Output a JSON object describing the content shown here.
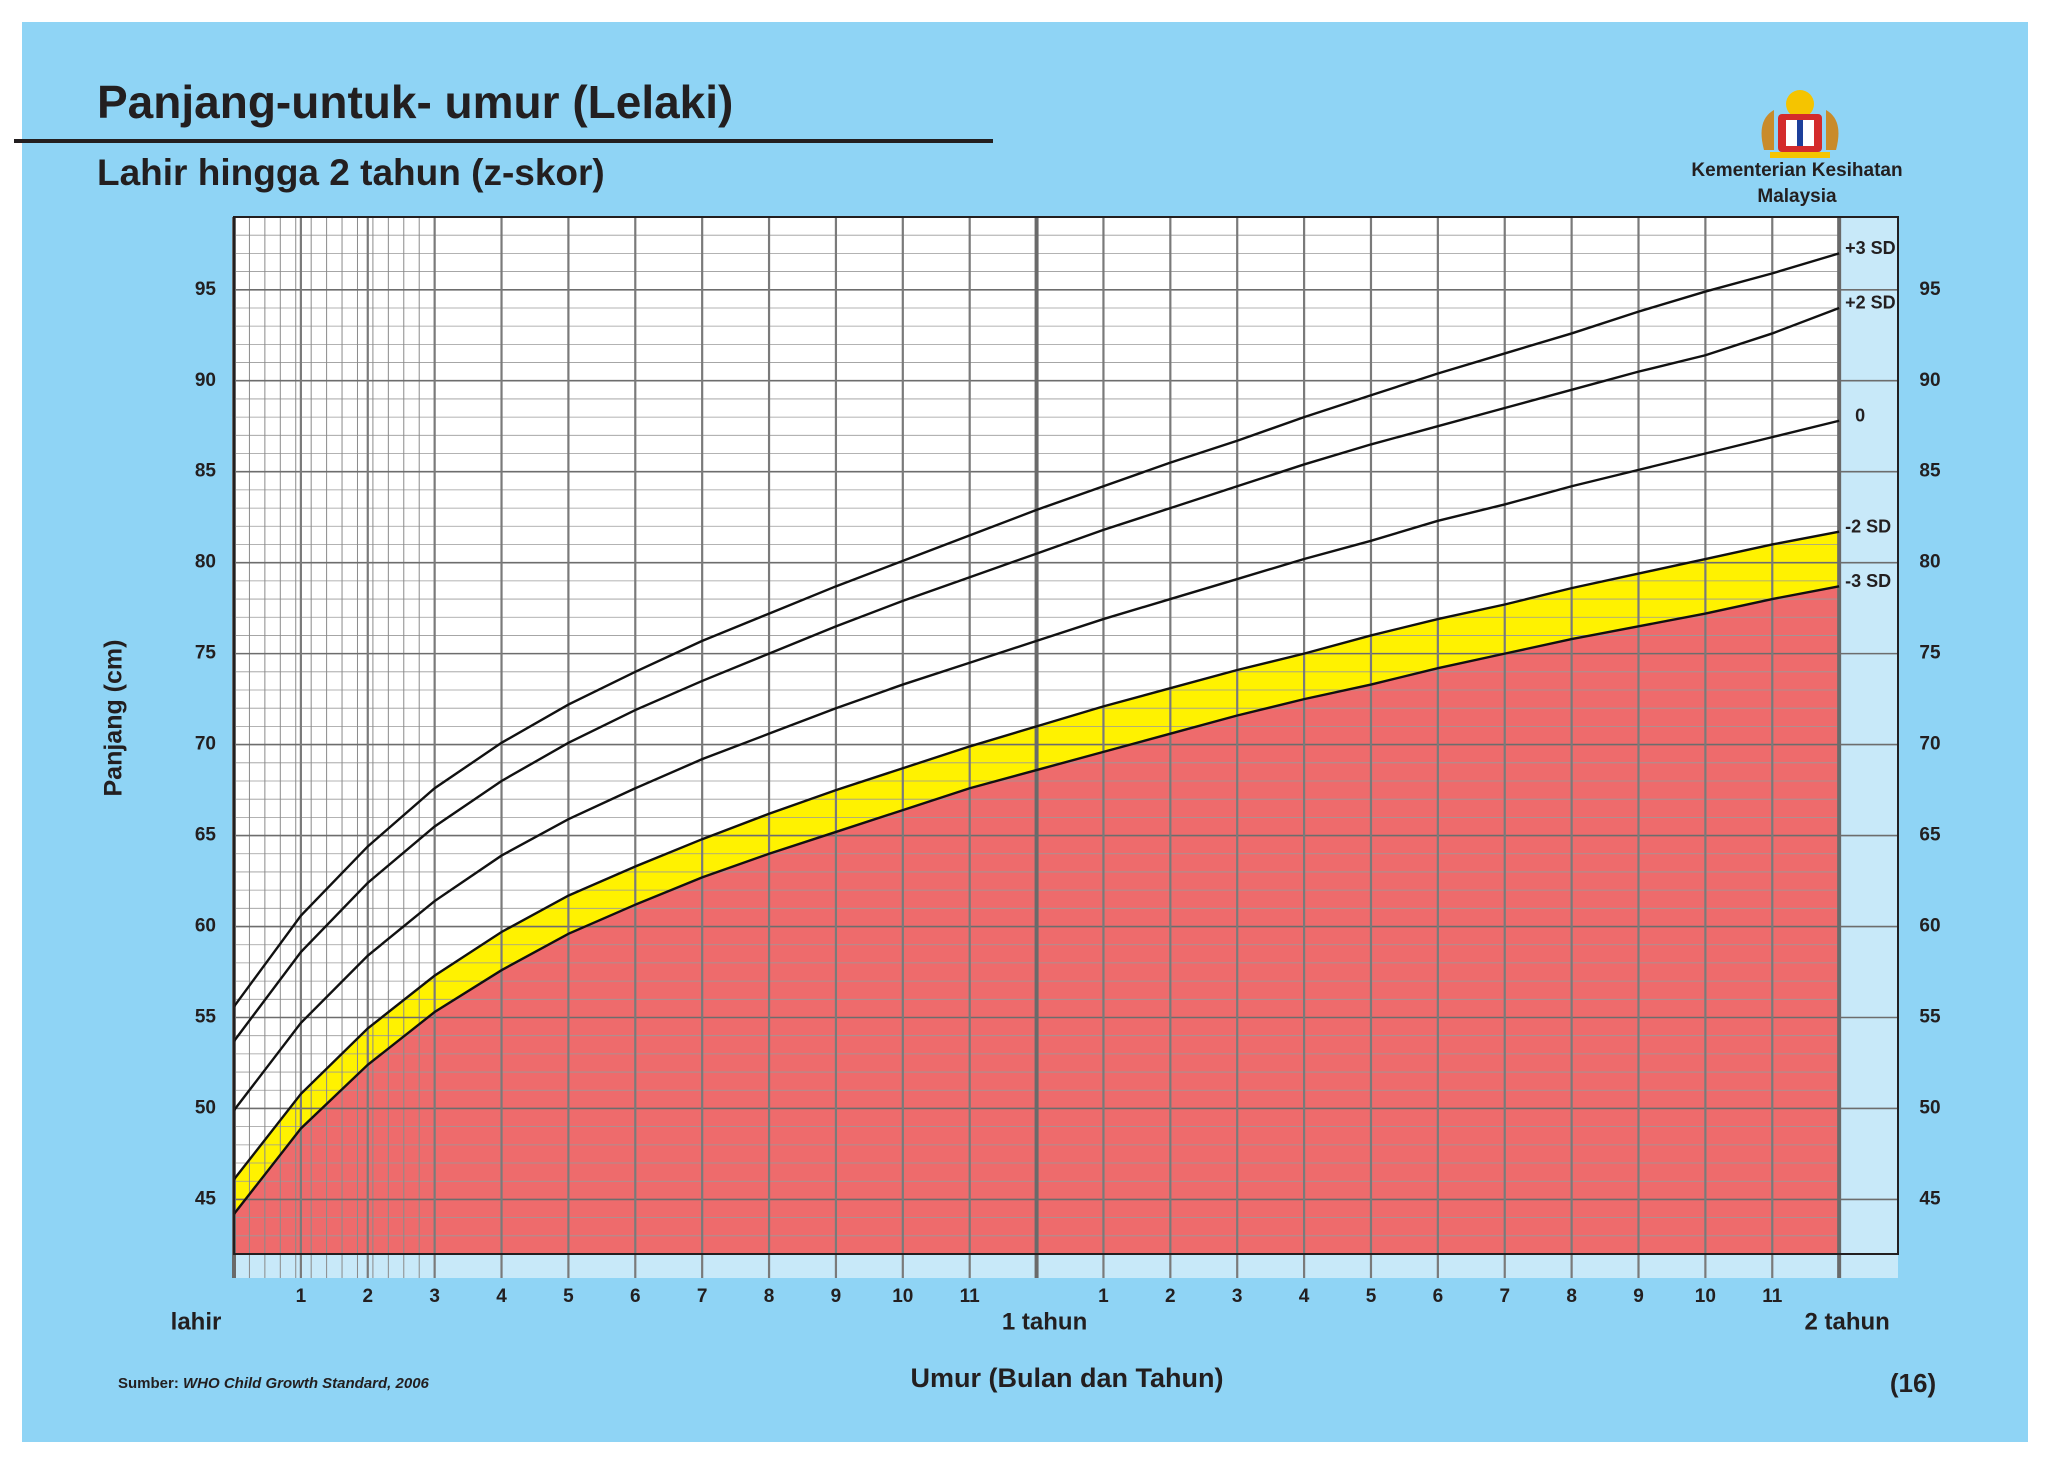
{
  "chart_data": {
    "type": "line",
    "title": "Panjang-untuk- umur (Lelaki)",
    "subtitle": "Lahir hingga 2 tahun (z-skor)",
    "organization": [
      "Kementerian Kesihatan",
      "Malaysia"
    ],
    "xlabel": "Umur (Bulan dan Tahun)",
    "ylabel": "Panjang (cm)",
    "source_prefix": "Sumber:",
    "source": "WHO Child Growth Standard, 2006",
    "page_number": "(16)",
    "x": [
      0,
      1,
      2,
      3,
      4,
      5,
      6,
      7,
      8,
      9,
      10,
      11,
      12,
      13,
      14,
      15,
      16,
      17,
      18,
      19,
      20,
      21,
      22,
      23,
      24
    ],
    "xlim": [
      0,
      24.88
    ],
    "xticks": [
      {
        "value": 0,
        "label": "lahir"
      },
      1,
      2,
      3,
      4,
      5,
      6,
      7,
      8,
      9,
      10,
      11,
      {
        "value": 12,
        "label": "1 tahun"
      },
      {
        "value": 13,
        "label": "1"
      },
      {
        "value": 14,
        "label": "2"
      },
      {
        "value": 15,
        "label": "3"
      },
      {
        "value": 16,
        "label": "4"
      },
      {
        "value": 17,
        "label": "5"
      },
      {
        "value": 18,
        "label": "6"
      },
      {
        "value": 19,
        "label": "7"
      },
      {
        "value": 20,
        "label": "8"
      },
      {
        "value": 21,
        "label": "9"
      },
      {
        "value": 22,
        "label": "10"
      },
      {
        "value": 23,
        "label": "11"
      },
      {
        "value": 24,
        "label": "2 tahun"
      }
    ],
    "ylim": [
      42,
      99
    ],
    "yticks": [
      45,
      50,
      55,
      60,
      65,
      70,
      75,
      80,
      85,
      90,
      95
    ],
    "grid": true,
    "minor_grid": true,
    "series": [
      {
        "name": "+3 SD",
        "color": "#111111",
        "values": [
          55.6,
          60.6,
          64.4,
          67.6,
          70.1,
          72.2,
          74.0,
          75.7,
          77.2,
          78.7,
          80.1,
          81.5,
          82.9,
          84.2,
          85.5,
          86.7,
          88.0,
          89.2,
          90.4,
          91.5,
          92.6,
          93.8,
          94.9,
          95.9,
          97.0
        ]
      },
      {
        "name": "+2 SD",
        "color": "#111111",
        "values": [
          53.7,
          58.6,
          62.4,
          65.5,
          68.0,
          70.1,
          71.9,
          73.5,
          75.0,
          76.5,
          77.9,
          79.2,
          80.5,
          81.8,
          83.0,
          84.2,
          85.4,
          86.5,
          87.5,
          88.5,
          89.5,
          90.5,
          91.4,
          92.6,
          94.0
        ]
      },
      {
        "name": "0",
        "color": "#111111",
        "values": [
          49.9,
          54.7,
          58.4,
          61.4,
          63.9,
          65.9,
          67.6,
          69.2,
          70.6,
          72.0,
          73.3,
          74.5,
          75.7,
          76.9,
          78.0,
          79.1,
          80.2,
          81.2,
          82.3,
          83.2,
          84.2,
          85.1,
          86.0,
          86.9,
          87.8
        ]
      },
      {
        "name": "-2 SD",
        "color": "#111111",
        "fill": "#fff200",
        "values": [
          46.1,
          50.8,
          54.4,
          57.3,
          59.7,
          61.7,
          63.3,
          64.8,
          66.2,
          67.5,
          68.7,
          69.9,
          71.0,
          72.1,
          73.1,
          74.1,
          75.0,
          76.0,
          76.9,
          77.7,
          78.6,
          79.4,
          80.2,
          81.0,
          81.7
        ]
      },
      {
        "name": "-3 SD",
        "color": "#111111",
        "fill": "#ee6b6c",
        "values": [
          44.2,
          48.9,
          52.4,
          55.3,
          57.6,
          59.6,
          61.2,
          62.7,
          64.0,
          65.2,
          66.4,
          67.6,
          68.6,
          69.6,
          70.6,
          71.6,
          72.5,
          73.3,
          74.2,
          75.0,
          75.8,
          76.5,
          77.2,
          78.0,
          78.7
        ]
      }
    ]
  }
}
